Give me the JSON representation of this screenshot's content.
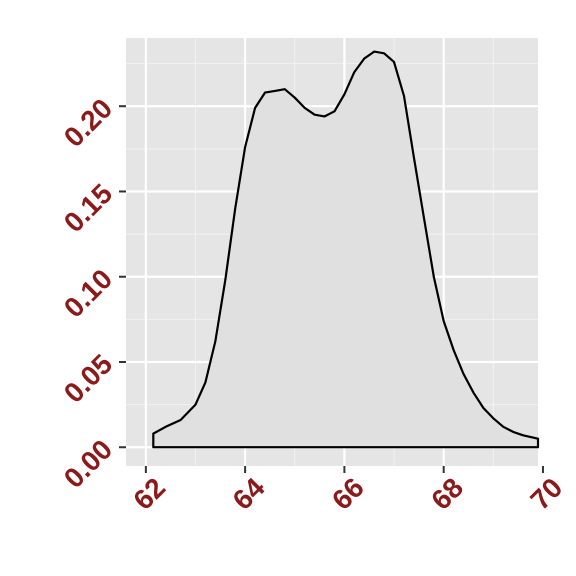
{
  "chart_data": {
    "type": "area",
    "title": "",
    "xlabel": "",
    "ylabel": "",
    "xlim": [
      61.6,
      69.9
    ],
    "ylim": [
      -0.011,
      0.24
    ],
    "x_ticks": [
      62,
      64,
      66,
      68,
      70
    ],
    "x_tick_labels": [
      "62",
      "64",
      "66",
      "68",
      "70"
    ],
    "y_ticks": [
      0.0,
      0.05,
      0.1,
      0.15,
      0.2
    ],
    "y_tick_labels": [
      "0.00",
      "0.05",
      "0.10",
      "0.15",
      "0.20"
    ],
    "grid": true,
    "legend": "none",
    "series": [
      {
        "x": [
          62.15,
          62.4,
          62.7,
          63.0,
          63.2,
          63.4,
          63.6,
          63.8,
          64.0,
          64.2,
          64.4,
          64.6,
          64.8,
          65.0,
          65.2,
          65.4,
          65.6,
          65.8,
          66.0,
          66.2,
          66.4,
          66.6,
          66.8,
          67.0,
          67.2,
          67.4,
          67.6,
          67.8,
          68.0,
          68.2,
          68.4,
          68.6,
          68.8,
          69.0,
          69.2,
          69.4,
          69.6,
          69.9
        ],
        "y": [
          0.008,
          0.012,
          0.016,
          0.025,
          0.038,
          0.062,
          0.098,
          0.14,
          0.176,
          0.199,
          0.208,
          0.209,
          0.21,
          0.205,
          0.199,
          0.195,
          0.194,
          0.197,
          0.207,
          0.22,
          0.228,
          0.232,
          0.231,
          0.226,
          0.206,
          0.17,
          0.135,
          0.1,
          0.074,
          0.057,
          0.043,
          0.032,
          0.023,
          0.017,
          0.012,
          0.009,
          0.007,
          0.005
        ]
      }
    ]
  },
  "colors": {
    "panel_background": "#e5e5e5",
    "grid_major": "#ffffff",
    "grid_minor": "#f2f2f2",
    "curve_line": "#000000",
    "curve_fill": "#e0e0e0",
    "tick_label": "#8b1a1a",
    "tick_mark": "#333333"
  }
}
